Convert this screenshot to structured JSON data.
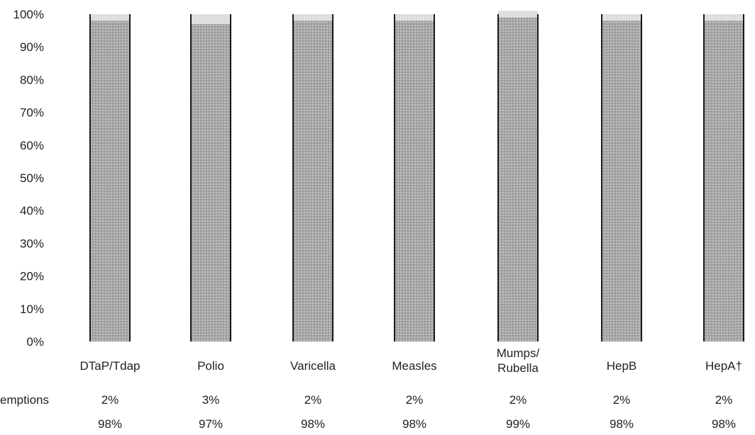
{
  "chart_data": {
    "type": "bar",
    "stacked": true,
    "categories": [
      "DTaP/Tdap",
      "Polio",
      "Varicella",
      "Measles",
      "Mumps/\nRubella",
      "HepB",
      "HepA†"
    ],
    "series": [
      {
        "values": [
          98,
          97,
          98,
          98,
          99,
          98,
          98
        ]
      },
      {
        "values": [
          2,
          3,
          2,
          2,
          2,
          2,
          2
        ]
      }
    ],
    "ylim": [
      0,
      100
    ],
    "yticks": [
      "0%",
      "10%",
      "20%",
      "30%",
      "40%",
      "50%",
      "60%",
      "70%",
      "80%",
      "90%",
      "100%"
    ],
    "colors": {
      "main": "#a9a9a9",
      "top": "#dedede",
      "edge": "#1a1a1a"
    },
    "table_rows": [
      {
        "label": "emptions",
        "values": [
          "2%",
          "3%",
          "2%",
          "2%",
          "2%",
          "2%",
          "2%"
        ]
      },
      {
        "label": "",
        "values": [
          "98%",
          "97%",
          "98%",
          "98%",
          "99%",
          "98%",
          "98%"
        ]
      }
    ]
  }
}
